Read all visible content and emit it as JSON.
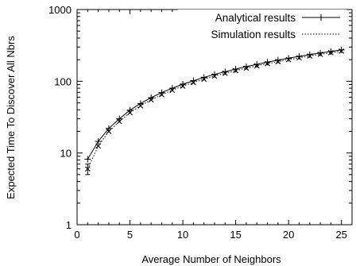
{
  "chart_data": {
    "type": "line",
    "xlabel": "Average Number of Neighbors",
    "ylabel": "Expected Time To Discover All Nbrs",
    "xlim": [
      0,
      26
    ],
    "ylim": [
      1,
      1000
    ],
    "yscale": "log",
    "grid": false,
    "legend_position": "top-right",
    "xticks": [
      "0",
      "5",
      "10",
      "15",
      "20",
      "25"
    ],
    "yticks": [
      "1",
      "10",
      "100",
      "1000"
    ],
    "x": [
      1,
      2,
      3,
      4,
      5,
      6,
      7,
      8,
      9,
      10,
      11,
      12,
      13,
      14,
      15,
      16,
      17,
      18,
      19,
      20,
      21,
      22,
      23,
      24,
      25
    ],
    "series": [
      {
        "name": "Analytical results",
        "style": "solid",
        "marker": "plus",
        "values": [
          8.2,
          14.5,
          22,
          30,
          39.5,
          49,
          59,
          69.5,
          80,
          91,
          102,
          113,
          124.5,
          136,
          148,
          160,
          172,
          184.5,
          197,
          209.5,
          222,
          235,
          247.5,
          260,
          273
        ]
      },
      {
        "name": "Simulation results",
        "style": "dotted",
        "marker": "x",
        "values": [
          6,
          12.5,
          20,
          27.5,
          36.5,
          45.5,
          55,
          65,
          75,
          85.5,
          96,
          107,
          118,
          129,
          140.5,
          152,
          164,
          176,
          188,
          200,
          212.5,
          225,
          237.5,
          250,
          263
        ],
        "error_first": [
          5,
          7
        ]
      }
    ]
  }
}
